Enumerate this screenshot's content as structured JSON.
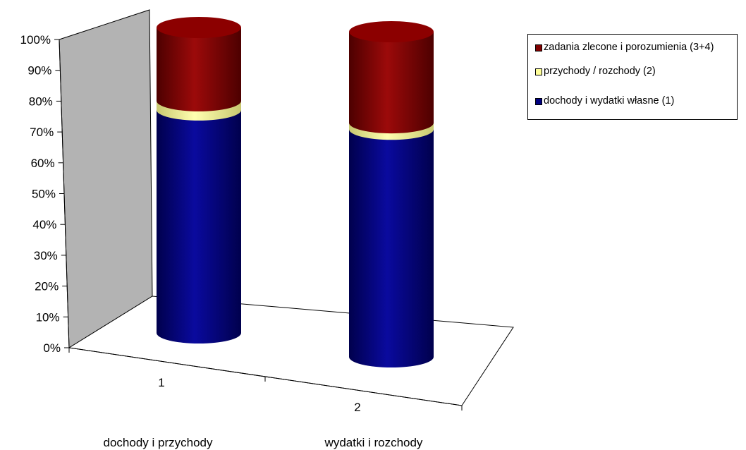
{
  "chart_data": {
    "type": "bar",
    "stacked": "percent",
    "style": "3d-cylinder",
    "categories": [
      "1",
      "2"
    ],
    "group_labels": [
      "dochody i przychody",
      "wydatki i rozchody"
    ],
    "series": [
      {
        "name": "dochody i wydatki własne (1)",
        "values": [
          73,
          70
        ],
        "color": "#000080"
      },
      {
        "name": "przychody / rozchody (2)",
        "values": [
          3,
          2
        ],
        "color": "#FFFF99"
      },
      {
        "name": "zadania zlecone i porozumienia (3+4)",
        "values": [
          24,
          28
        ],
        "color": "#800000"
      }
    ],
    "ylim": [
      0,
      100
    ],
    "yticks": [
      "0%",
      "10%",
      "20%",
      "30%",
      "40%",
      "50%",
      "60%",
      "70%",
      "80%",
      "90%",
      "100%"
    ],
    "legend_position": "top-right",
    "wall_color": "#B3B3B3"
  },
  "legend": {
    "items": [
      {
        "label": "zadania zlecone i porozumienia (3+4)",
        "color": "#800000"
      },
      {
        "label": "przychody / rozchody (2)",
        "color": "#FFFF99"
      },
      {
        "label": "dochody i wydatki własne (1)",
        "color": "#000080"
      }
    ]
  }
}
